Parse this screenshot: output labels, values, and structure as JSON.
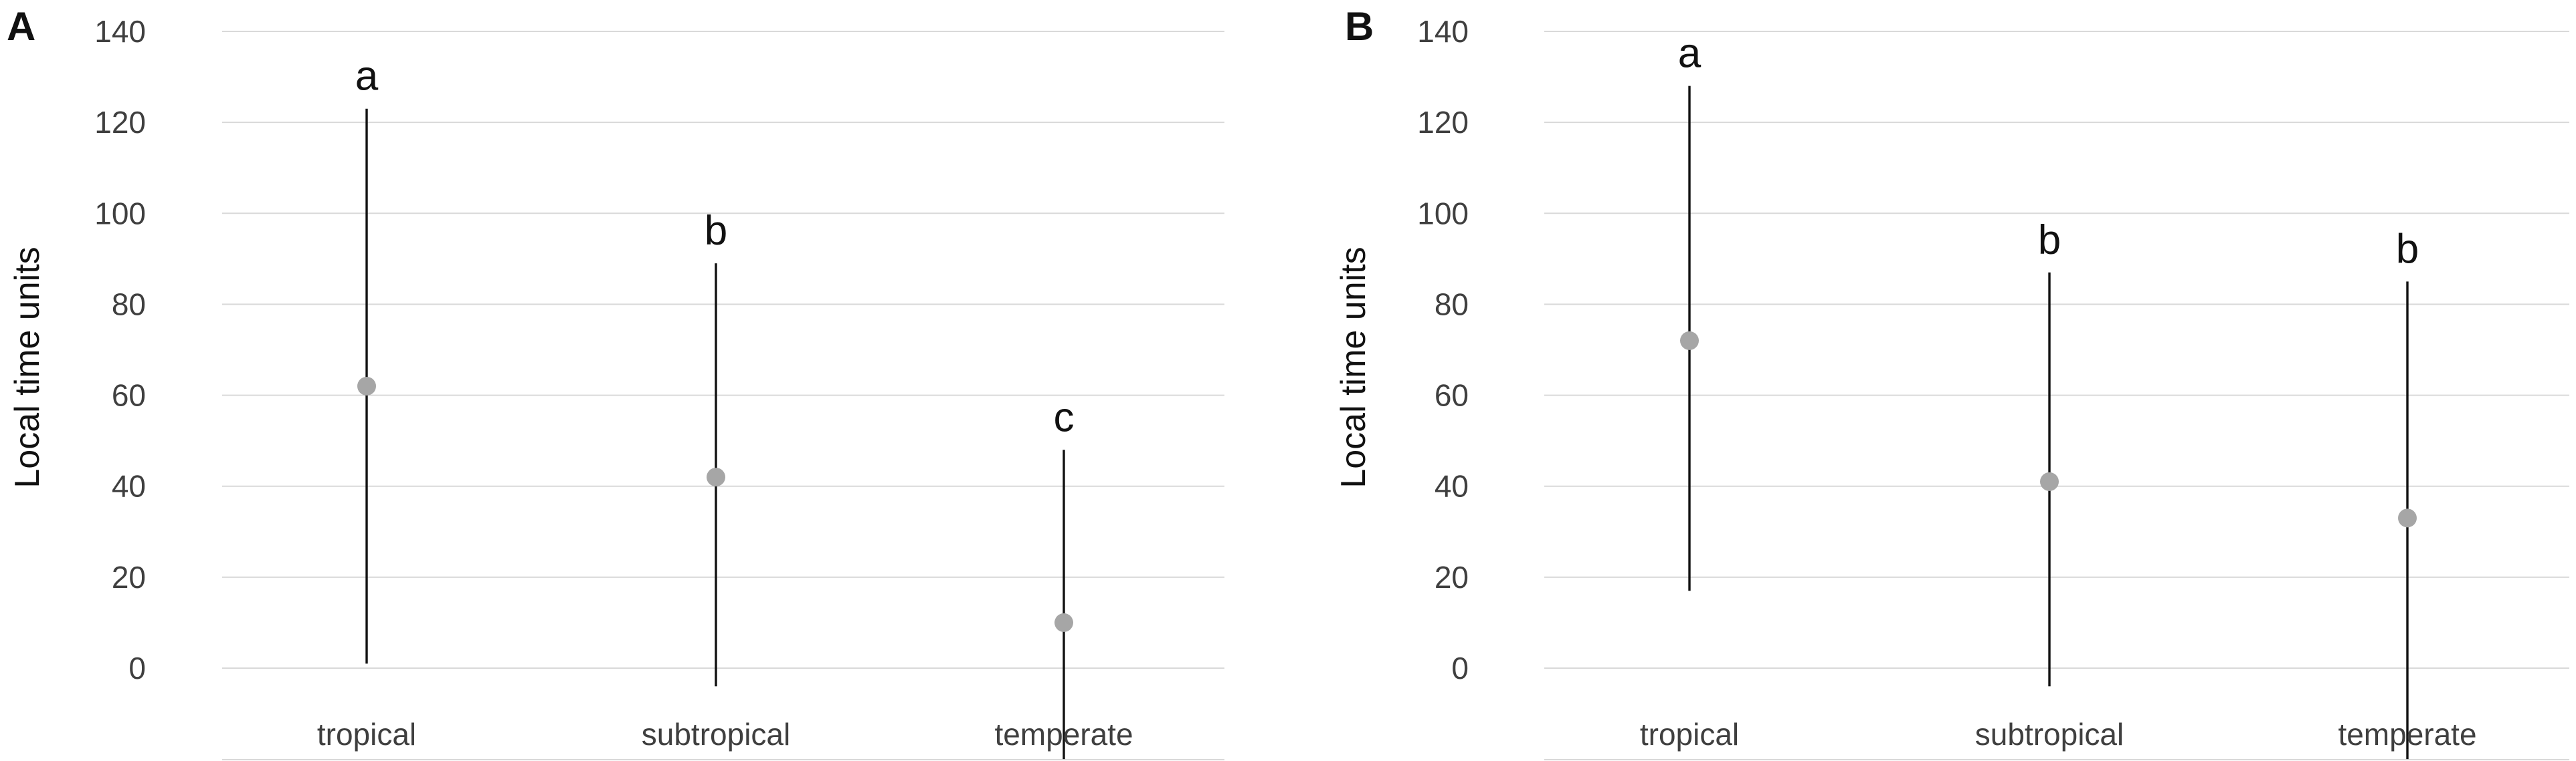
{
  "chart_data": [
    {
      "type": "scatter",
      "panel_label": "A",
      "title": "",
      "xlabel": "",
      "ylabel": "Local time units",
      "ylim": [
        0,
        140
      ],
      "yticks": [
        0,
        20,
        40,
        60,
        80,
        100,
        120,
        140
      ],
      "grid": true,
      "categories": [
        "tropical",
        "subtropical",
        "temperate"
      ],
      "values": [
        62,
        42,
        10
      ],
      "error_low": [
        1,
        -4,
        -20
      ],
      "error_high": [
        123,
        89,
        48
      ],
      "significance_letters": [
        "a",
        "b",
        "c"
      ]
    },
    {
      "type": "scatter",
      "panel_label": "B",
      "title": "",
      "xlabel": "",
      "ylabel": "Local time units",
      "ylim": [
        0,
        140
      ],
      "yticks": [
        0,
        20,
        40,
        60,
        80,
        100,
        120,
        140
      ],
      "grid": true,
      "categories": [
        "tropical",
        "subtropical",
        "temperate"
      ],
      "values": [
        72,
        41,
        33
      ],
      "error_low": [
        17,
        -4,
        -20
      ],
      "error_high": [
        128,
        87,
        85
      ],
      "significance_letters": [
        "a",
        "b",
        "b"
      ]
    }
  ],
  "colors": {
    "point": "#a6a6a6",
    "error_bar": "#111111",
    "grid": "#d9d9d9",
    "text": "#3f3f3f"
  }
}
